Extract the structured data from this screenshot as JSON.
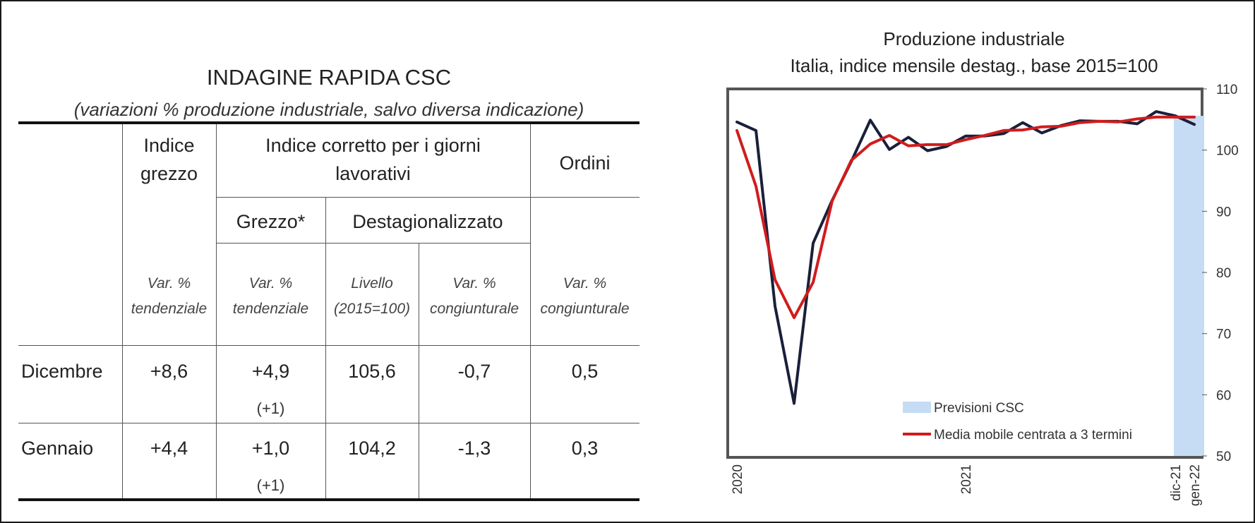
{
  "table": {
    "title": "INDAGINE RAPIDA CSC",
    "subtitle": "(variazioni % produzione industriale, salvo diversa indicazione)",
    "headers": {
      "indice_grezzo_l1": "Indice",
      "indice_grezzo_l2": "grezzo",
      "corretto_l1": "Indice corretto per i giorni",
      "corretto_l2": "lavorativi",
      "ordini": "Ordini",
      "grezzo_star": "Grezzo*",
      "destag": "Destagionalizzato"
    },
    "units": {
      "c1_l1": "Var. %",
      "c1_l2": "tendenziale",
      "c2_l1": "Var. %",
      "c2_l2": "tendenziale",
      "c3_l1": "Livello",
      "c3_l2": "(2015=100)",
      "c4_l1": "Var. %",
      "c4_l2": "congiunturale",
      "c5_l1": "Var. %",
      "c5_l2": "congiunturale"
    },
    "rows": [
      {
        "label": "Dicembre",
        "grezzo": "+8,6",
        "corr_grezzo": "+4,9",
        "corr_note": "(+1)",
        "livello": "105,6",
        "var_cong": "-0,7",
        "ordini": "0,5"
      },
      {
        "label": "Gennaio",
        "grezzo": "+4,4",
        "corr_grezzo": "+1,0",
        "corr_note": "(+1)",
        "livello": "104,2",
        "var_cong": "-1,3",
        "ordini": "0,3"
      }
    ]
  },
  "chart_data": {
    "type": "line",
    "title": "Produzione industriale",
    "subtitle": "Italia, indice mensile destag., base 2015=100",
    "x": [
      "2020-01",
      "2020-02",
      "2020-03",
      "2020-04",
      "2020-05",
      "2020-06",
      "2020-07",
      "2020-08",
      "2020-09",
      "2020-10",
      "2020-11",
      "2020-12",
      "2021-01",
      "2021-02",
      "2021-03",
      "2021-04",
      "2021-05",
      "2021-06",
      "2021-07",
      "2021-08",
      "2021-09",
      "2021-10",
      "2021-11",
      "2021-12",
      "2022-01"
    ],
    "x_tick_labels": [
      "2020",
      "2021",
      "dic-21",
      "gen-22"
    ],
    "ylim": [
      50,
      110
    ],
    "yticks": [
      50,
      60,
      70,
      80,
      90,
      100,
      110
    ],
    "y_axis_side": "right",
    "series": [
      {
        "name": "",
        "color": "#1a1f3a",
        "values": [
          104.6,
          103.2,
          74.5,
          58.6,
          84.8,
          91.8,
          98.1,
          104.9,
          100.1,
          102.1,
          99.9,
          100.6,
          102.3,
          102.3,
          102.7,
          104.5,
          102.8,
          104.0,
          104.8,
          104.7,
          104.7,
          104.3,
          106.3,
          105.6,
          104.2
        ]
      },
      {
        "name": "Media mobile centrata a 3 termini",
        "color": "#d01c1c",
        "values": [
          103.2,
          94.1,
          78.8,
          72.6,
          78.4,
          91.7,
          98.3,
          101.0,
          102.4,
          100.7,
          100.9,
          100.9,
          101.7,
          102.4,
          103.2,
          103.3,
          103.8,
          103.9,
          104.5,
          104.7,
          104.6,
          105.1,
          105.4,
          105.4,
          105.4
        ]
      }
    ],
    "forecast_band": {
      "label": "Previsioni CSC",
      "color": "#c5dcf4",
      "from": "2021-12",
      "to": "2022-01"
    },
    "legend_placement": "bottom-center"
  }
}
